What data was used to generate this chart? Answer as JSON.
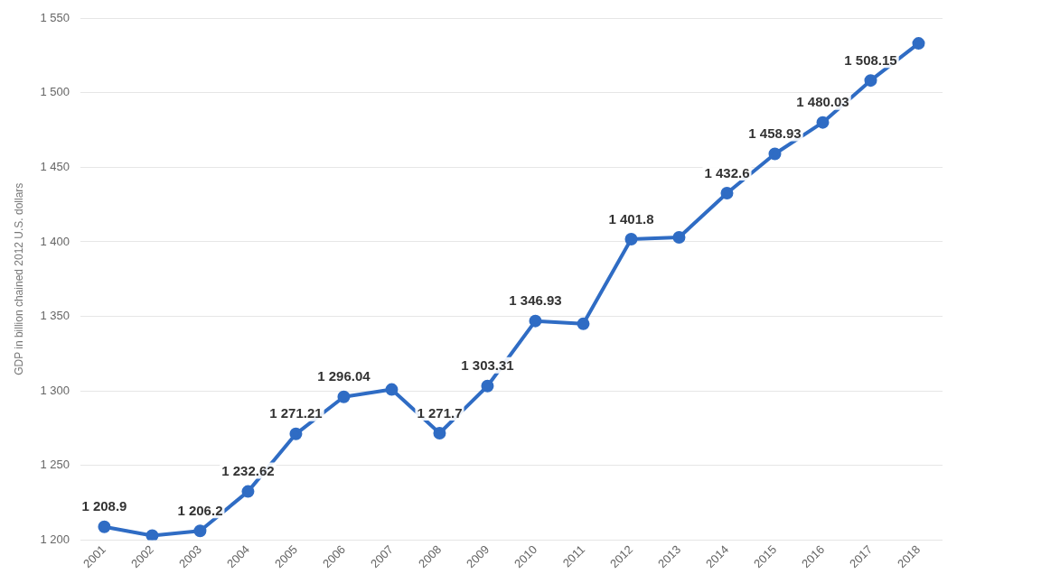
{
  "chart_data": {
    "type": "line",
    "ylabel": "GDP in billion chained 2012 U.S. dollars",
    "categories": [
      "2001",
      "2002",
      "2003",
      "2004",
      "2005",
      "2006",
      "2007",
      "2008",
      "2009",
      "2010",
      "2011",
      "2012",
      "2013",
      "2014",
      "2015",
      "2016",
      "2017",
      "2018"
    ],
    "series": [
      {
        "color": "#2f6cc4",
        "values": [
          1208.9,
          1203,
          1206.2,
          1232.62,
          1271.21,
          1296.04,
          1301,
          1271.7,
          1303.31,
          1346.93,
          1345,
          1401.8,
          1403,
          1432.6,
          1458.93,
          1480.03,
          1508.15,
          1533
        ],
        "value_labels": [
          "1 208.9",
          null,
          "1 206.2",
          "1 232.62",
          "1 271.21",
          "1 296.04",
          null,
          "1 271.7",
          "1 303.31",
          "1 346.93",
          null,
          "1 401.8",
          null,
          "1 432.6",
          "1 458.93",
          "1 480.03",
          "1 508.15",
          null
        ]
      }
    ],
    "ylim": [
      1200,
      1550
    ],
    "yticks": [
      {
        "value": 1200,
        "label": "1 200"
      },
      {
        "value": 1250,
        "label": "1 250"
      },
      {
        "value": 1300,
        "label": "1 300"
      },
      {
        "value": 1350,
        "label": "1 350"
      },
      {
        "value": 1400,
        "label": "1 400"
      },
      {
        "value": 1450,
        "label": "1 450"
      },
      {
        "value": 1500,
        "label": "1 500"
      },
      {
        "value": 1550,
        "label": "1 550"
      }
    ],
    "grid": "y",
    "legend": false,
    "marker": "circle",
    "line_style": "solid"
  }
}
